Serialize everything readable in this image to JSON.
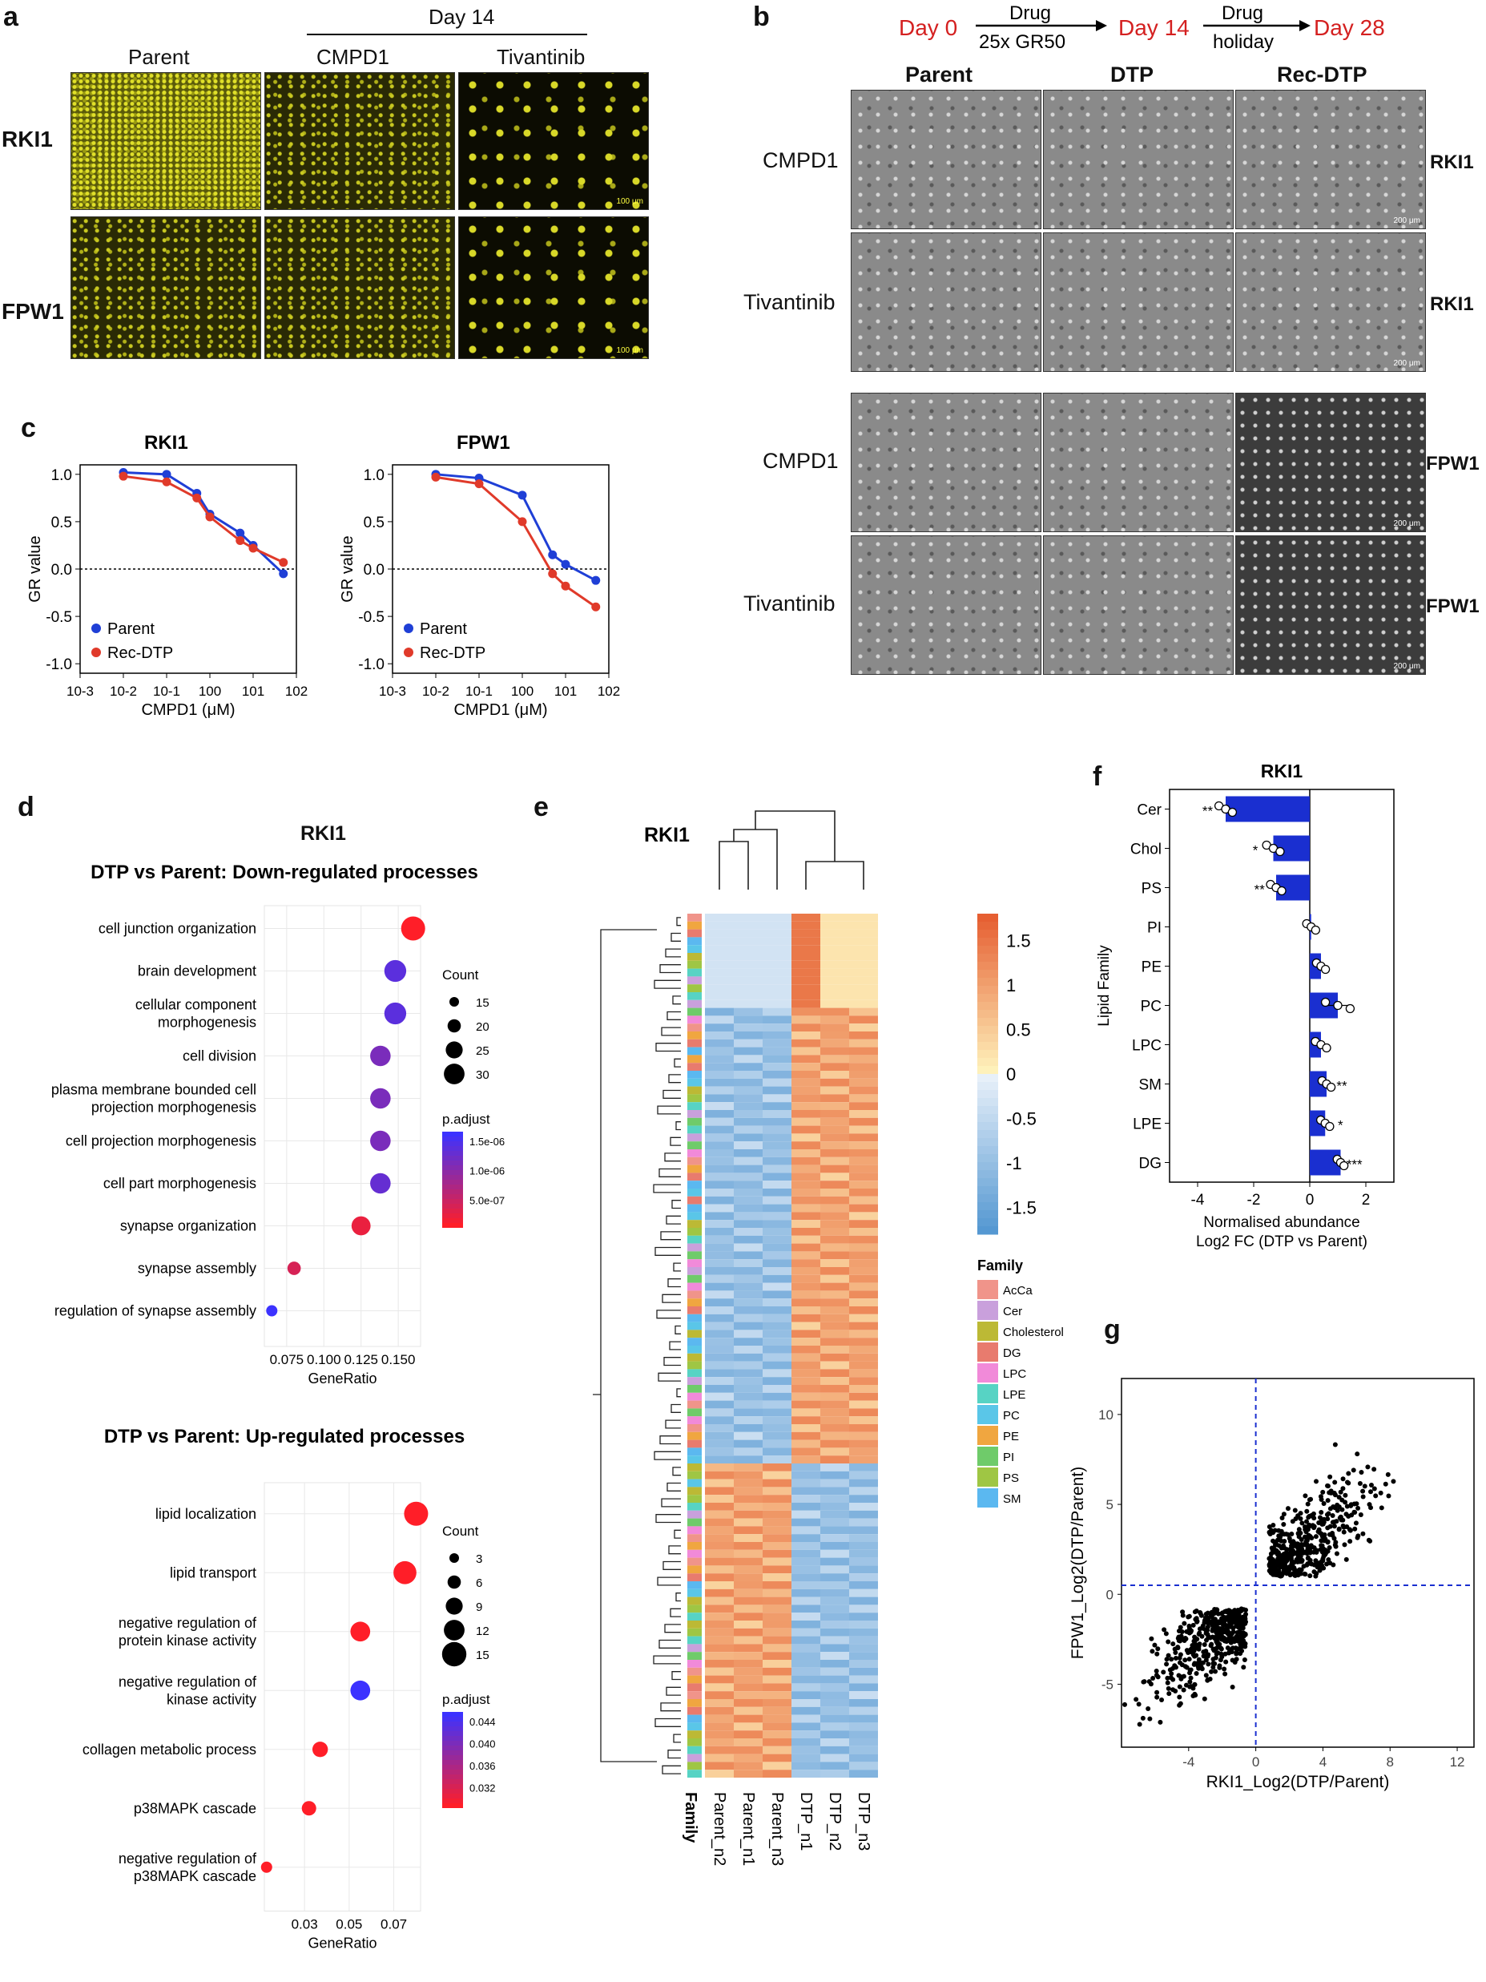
{
  "panels": {
    "a": {
      "letter": "a",
      "day_header": "Day 14",
      "columns": [
        "Parent",
        "CMPD1",
        "Tivantinib"
      ],
      "rows": [
        "RKI1",
        "FPW1"
      ],
      "scale_bar": "100 μm"
    },
    "b": {
      "letter": "b",
      "timeline": {
        "day0": "Day 0",
        "drug": "Drug",
        "dose": "25x GR50",
        "day14": "Day 14",
        "drug2": "Drug",
        "holiday": "holiday",
        "day28": "Day 28"
      },
      "columns": [
        "Parent",
        "DTP",
        "Rec-DTP"
      ],
      "row_drugs": [
        "CMPD1",
        "Tivantinib",
        "CMPD1",
        "Tivantinib"
      ],
      "row_lines": [
        "RKI1",
        "RKI1",
        "FPW1",
        "FPW1"
      ],
      "scale_bar": "200 μm"
    },
    "c": {
      "letter": "c"
    },
    "d": {
      "letter": "d",
      "title": "RKI1"
    },
    "e": {
      "letter": "e",
      "title": "RKI1"
    },
    "f": {
      "letter": "f"
    },
    "g": {
      "letter": "g"
    }
  },
  "chart_data": [
    {
      "id": "c-RKI1",
      "type": "line",
      "title": "RKI1",
      "xlabel": "CMPD1 (μM)",
      "ylabel": "GR value",
      "xscale": "log",
      "x_tick_labels": [
        "10-3",
        "10-2",
        "10-1",
        "100",
        "101",
        "102"
      ],
      "y_tick_labels": [
        "1.0",
        "0.5",
        "0.0",
        "-0.5",
        "-1.0"
      ],
      "ylim": [
        -1.0,
        1.0
      ],
      "legend": [
        "Parent",
        "Rec-DTP"
      ],
      "series": [
        {
          "name": "Parent",
          "color": "#1f3fd6",
          "x": [
            0.01,
            0.1,
            0.5,
            1,
            5,
            10,
            50
          ],
          "y": [
            1.02,
            1.0,
            0.8,
            0.58,
            0.38,
            0.25,
            -0.05
          ]
        },
        {
          "name": "Rec-DTP",
          "color": "#e03a2a",
          "x": [
            0.01,
            0.1,
            0.5,
            1,
            5,
            10,
            50
          ],
          "y": [
            0.98,
            0.92,
            0.75,
            0.55,
            0.3,
            0.22,
            0.07
          ]
        }
      ]
    },
    {
      "id": "c-FPW1",
      "type": "line",
      "title": "FPW1",
      "xlabel": "CMPD1 (μM)",
      "ylabel": "GR value",
      "xscale": "log",
      "x_tick_labels": [
        "10-3",
        "10-2",
        "10-1",
        "100",
        "101",
        "102"
      ],
      "y_tick_labels": [
        "1.0",
        "0.5",
        "0.0",
        "-0.5",
        "-1.0"
      ],
      "ylim": [
        -1.0,
        1.0
      ],
      "legend": [
        "Parent",
        "Rec-DTP"
      ],
      "series": [
        {
          "name": "Parent",
          "color": "#1f3fd6",
          "x": [
            0.01,
            0.1,
            1,
            5,
            10,
            50
          ],
          "y": [
            1.0,
            0.96,
            0.78,
            0.15,
            0.05,
            -0.12
          ]
        },
        {
          "name": "Rec-DTP",
          "color": "#e03a2a",
          "x": [
            0.01,
            0.1,
            1,
            5,
            10,
            50
          ],
          "y": [
            0.97,
            0.9,
            0.5,
            -0.05,
            -0.18,
            -0.4
          ]
        }
      ]
    },
    {
      "id": "d-down",
      "type": "scatter",
      "title": "DTP vs Parent: Down-regulated processes",
      "xlabel": "GeneRatio",
      "x_tick_labels": [
        "0.075",
        "0.100",
        "0.125",
        "0.150"
      ],
      "xlim": [
        0.06,
        0.165
      ],
      "terms": [
        "cell junction organization",
        "brain development",
        "cellular component\nmorphogenesis",
        "cell division",
        "plasma membrane bounded cell\nprojection morphogenesis",
        "cell projection morphogenesis",
        "cell part morphogenesis",
        "synapse organization",
        "synapse assembly",
        "regulation of synapse assembly"
      ],
      "gene_ratio": [
        0.16,
        0.148,
        0.148,
        0.138,
        0.138,
        0.138,
        0.138,
        0.125,
        0.08,
        0.065
      ],
      "count": [
        30,
        27,
        27,
        25,
        25,
        25,
        25,
        23,
        15,
        12
      ],
      "p_adjust": [
        1e-07,
        1.7e-06,
        1.7e-06,
        1.4e-06,
        1.4e-06,
        1.4e-06,
        1.6e-06,
        3e-07,
        5e-07,
        2e-06
      ],
      "size_legend_title": "Count",
      "size_legend": [
        "15",
        "20",
        "25",
        "30"
      ],
      "color_legend_title": "p.adjust",
      "color_legend": [
        "1.5e-06",
        "1.0e-06",
        "5.0e-07"
      ]
    },
    {
      "id": "d-up",
      "type": "scatter",
      "title": "DTP vs Parent: Up-regulated processes",
      "xlabel": "GeneRatio",
      "x_tick_labels": [
        "0.03",
        "0.05",
        "0.07"
      ],
      "xlim": [
        0.012,
        0.082
      ],
      "terms": [
        "lipid localization",
        "lipid transport",
        "negative regulation of\nprotein kinase activity",
        "negative regulation of\nkinase activity",
        "collagen metabolic process",
        "p38MAPK cascade",
        "negative regulation of\np38MAPK cascade"
      ],
      "gene_ratio": [
        0.08,
        0.075,
        0.055,
        0.055,
        0.037,
        0.032,
        0.013
      ],
      "count": [
        15,
        14,
        11,
        11,
        7,
        6,
        3
      ],
      "p_adjust": [
        0.031,
        0.031,
        0.031,
        0.045,
        0.031,
        0.031,
        0.031
      ],
      "size_legend_title": "Count",
      "size_legend": [
        "3",
        "6",
        "9",
        "12",
        "15"
      ],
      "color_legend_title": "p.adjust",
      "color_legend": [
        "0.044",
        "0.040",
        "0.036",
        "0.032"
      ]
    },
    {
      "id": "e-heatmap",
      "type": "heatmap",
      "title": "RKI1",
      "columns": [
        "Parent_n2",
        "Parent_n1",
        "Parent_n3",
        "DTP_n1",
        "DTP_n2",
        "DTP_n3"
      ],
      "annotation_label": "Family",
      "scale_labels": [
        "1.5",
        "1",
        "0.5",
        "0",
        "-0.5",
        "-1",
        "-1.5"
      ],
      "family_legend_title": "Family",
      "families": [
        "AcCa",
        "Cer",
        "Cholesterol",
        "DG",
        "LPC",
        "LPE",
        "PC",
        "PE",
        "PI",
        "PS",
        "SM"
      ],
      "family_colors": [
        "#f0948a",
        "#c9a0dc",
        "#bcb935",
        "#e87b6e",
        "#f18ad9",
        "#57d3c4",
        "#5ac6e8",
        "#f0a640",
        "#6fcb6a",
        "#9fc644",
        "#5bb8f0"
      ]
    },
    {
      "id": "f-bar",
      "type": "bar",
      "title": "RKI1",
      "ylabel": "Lipid Family",
      "xlabel": "Normalised abundance",
      "xlabel2": "Log2 FC (DTP vs Parent)",
      "xlim": [
        -5,
        3
      ],
      "x_tick_labels": [
        "-4",
        "-2",
        "0",
        "2"
      ],
      "categories": [
        "Cer",
        "Chol",
        "PS",
        "PI",
        "PE",
        "PC",
        "LPC",
        "SM",
        "LPE",
        "DG"
      ],
      "values": [
        -3.0,
        -1.3,
        -1.2,
        0.05,
        0.4,
        1.0,
        0.4,
        0.6,
        0.55,
        1.1
      ],
      "errors": [
        0.3,
        0.3,
        0.25,
        0.2,
        0.2,
        0.55,
        0.25,
        0.2,
        0.2,
        0.15
      ],
      "significance": [
        "**",
        "*",
        "**",
        "",
        "",
        "",
        "",
        "**",
        "*",
        "***"
      ],
      "bar_color": "#1a2fd0"
    },
    {
      "id": "g-scatter",
      "type": "scatter",
      "xlabel": "RKI1_Log2(DTP/Parent)",
      "ylabel": "FPW1_Log2(DTP/Parent)",
      "xlim": [
        -8,
        13
      ],
      "ylim": [
        -8.5,
        12
      ],
      "x_tick_labels": [
        "-4",
        "0",
        "4",
        "8",
        "12"
      ],
      "y_tick_labels": [
        "10",
        "5",
        "0",
        "-5"
      ],
      "threshold_x": 0,
      "threshold_y": 0.5,
      "correlation": "positive"
    }
  ]
}
